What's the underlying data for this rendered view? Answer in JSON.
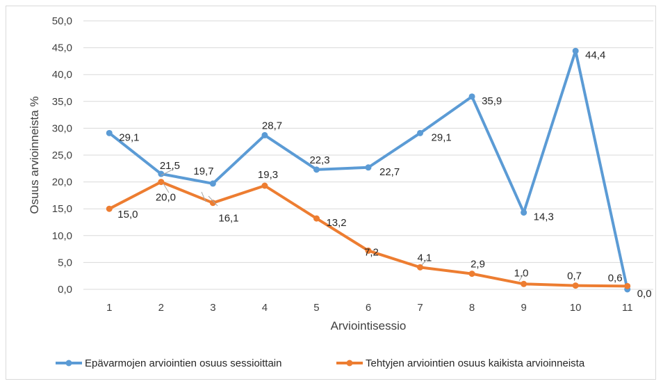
{
  "chart_data": {
    "type": "line",
    "title": "",
    "xlabel": "Arviointisessio",
    "ylabel": "Osuus arvioinneista %",
    "categories": [
      "1",
      "2",
      "3",
      "4",
      "5",
      "6",
      "7",
      "8",
      "9",
      "10",
      "11"
    ],
    "ylim": [
      0,
      50
    ],
    "y_ticks": [
      "0,0",
      "5,0",
      "10,0",
      "15,0",
      "20,0",
      "25,0",
      "30,0",
      "35,0",
      "40,0",
      "45,0",
      "50,0"
    ],
    "grid": true,
    "legend_position": "bottom",
    "series": [
      {
        "name": "Epävarmojen arviointien osuus sessioittain",
        "color": "#5b9bd5",
        "values": [
          29.1,
          21.5,
          19.7,
          28.7,
          22.3,
          22.7,
          29.1,
          35.9,
          14.3,
          44.4,
          0.0
        ],
        "labels": [
          "29,1",
          "21,5",
          "19,7",
          "28,7",
          "22,3",
          "22,7",
          "29,1",
          "35,9",
          "14,3",
          "44,4",
          "0,0"
        ]
      },
      {
        "name": "Tehtyjen arviointien osuus kaikista arvioinneista",
        "color": "#ed7d31",
        "values": [
          15.0,
          20.0,
          16.1,
          19.3,
          13.2,
          7.2,
          4.1,
          2.9,
          1.0,
          0.7,
          0.6
        ],
        "labels": [
          "15,0",
          "20,0",
          "16,1",
          "19,3",
          "13,2",
          "7,2",
          "4,1",
          "2,9",
          "1,0",
          "0,7",
          "0,6"
        ]
      }
    ]
  }
}
